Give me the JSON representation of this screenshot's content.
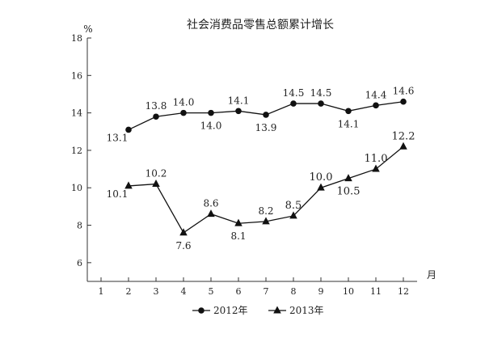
{
  "chart_data": {
    "type": "line",
    "title": "社会消费品零售总额累计增长",
    "ylabel": "%",
    "xlabel": "月",
    "x": [
      1,
      2,
      3,
      4,
      5,
      6,
      7,
      8,
      9,
      10,
      11,
      12
    ],
    "xlim": [
      1,
      12
    ],
    "ylim": [
      5,
      18
    ],
    "yticks": [
      6,
      8,
      10,
      12,
      14,
      16,
      18
    ],
    "grid": false,
    "legend_position": "bottom-center",
    "series": [
      {
        "name": "2012年",
        "marker": "circle",
        "color": "#111111",
        "x": [
          2,
          3,
          4,
          5,
          6,
          7,
          8,
          9,
          10,
          11,
          12
        ],
        "values": [
          13.1,
          13.8,
          14.0,
          14.0,
          14.1,
          13.9,
          14.5,
          14.5,
          14.1,
          14.4,
          14.6
        ],
        "labels": [
          "13.1",
          "13.8",
          "14.0",
          "14.0",
          "14.1",
          "13.9",
          "14.5",
          "14.5",
          "14.1",
          "14.4",
          "14.6"
        ]
      },
      {
        "name": "2013年",
        "marker": "triangle",
        "color": "#111111",
        "x": [
          2,
          3,
          4,
          5,
          6,
          7,
          8,
          9,
          10,
          11,
          12
        ],
        "values": [
          10.1,
          10.2,
          7.6,
          8.6,
          8.1,
          8.2,
          8.5,
          10.0,
          10.5,
          11.0,
          12.2
        ],
        "labels": [
          "10.1",
          "10.2",
          "7.6",
          "8.6",
          "8.1",
          "8.2",
          "8.5",
          "10.0",
          "10.5",
          "11.0",
          "12.2"
        ]
      }
    ]
  }
}
